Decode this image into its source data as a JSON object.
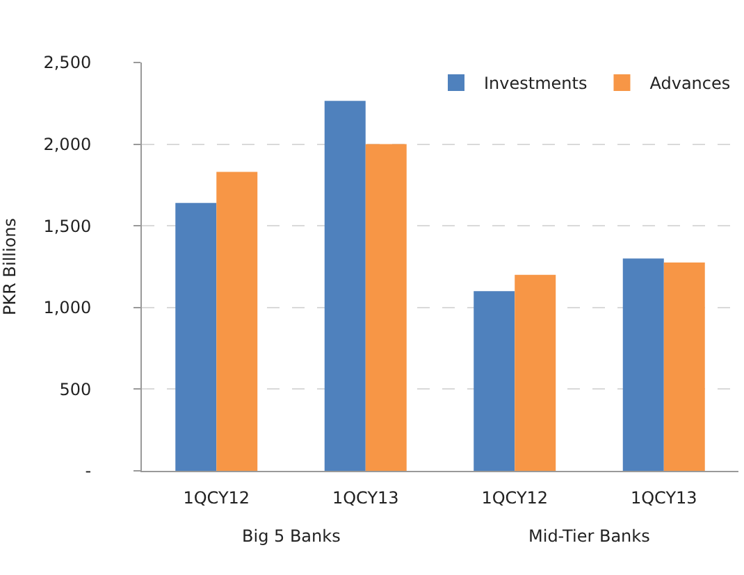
{
  "chart_data": {
    "type": "bar",
    "ylabel": "PKR Billions",
    "categories": [
      "1QCY12",
      "1QCY13",
      "1QCY12",
      "1QCY13"
    ],
    "series": [
      {
        "name": "Investments",
        "color": "#4f81bd",
        "values": [
          1640,
          2265,
          1100,
          1300
        ]
      },
      {
        "name": "Advances",
        "color": "#f79646",
        "values": [
          1830,
          2000,
          1200,
          1275
        ]
      }
    ],
    "annotations": [
      "Big 5 Banks",
      "Mid-Tier Banks"
    ],
    "ylim": [
      0,
      2500
    ],
    "yticks": [
      {
        "value": 0,
        "label": "-"
      },
      {
        "value": 500,
        "label": "500"
      },
      {
        "value": 1000,
        "label": "1,000"
      },
      {
        "value": 1500,
        "label": "1,500"
      },
      {
        "value": 2000,
        "label": "2,000"
      },
      {
        "value": 2500,
        "label": "2,500"
      }
    ],
    "grid": "y",
    "legend": "top right"
  }
}
